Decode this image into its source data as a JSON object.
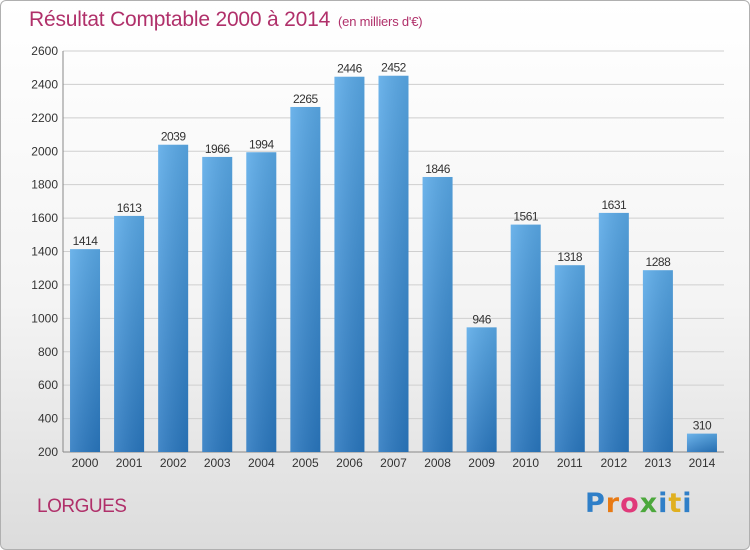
{
  "header": {
    "title": "Résultat Comptable 2000 à 2014",
    "subtitle": "(en milliers d'€)"
  },
  "footer": {
    "location": "LORGUES",
    "logo_text": "Proxiti"
  },
  "colors": {
    "title": "#b0306a",
    "bar_top": "#5aaae8",
    "bar_bottom": "#2a78c0"
  },
  "chart_data": {
    "type": "bar",
    "title": "Résultat Comptable 2000 à 2014",
    "subtitle": "(en milliers d'€)",
    "xlabel": "",
    "ylabel": "",
    "categories": [
      "2000",
      "2001",
      "2002",
      "2003",
      "2004",
      "2005",
      "2006",
      "2007",
      "2008",
      "2009",
      "2010",
      "2011",
      "2012",
      "2013",
      "2014"
    ],
    "values": [
      1414,
      1613,
      2039,
      1966,
      1994,
      2265,
      2446,
      2452,
      1846,
      946,
      1561,
      1318,
      1631,
      1288,
      310
    ],
    "ylim": [
      200,
      2600
    ],
    "yticks": [
      200,
      400,
      600,
      800,
      1000,
      1200,
      1400,
      1600,
      1800,
      2000,
      2200,
      2400,
      2600
    ],
    "grid": true,
    "legend": "none"
  }
}
